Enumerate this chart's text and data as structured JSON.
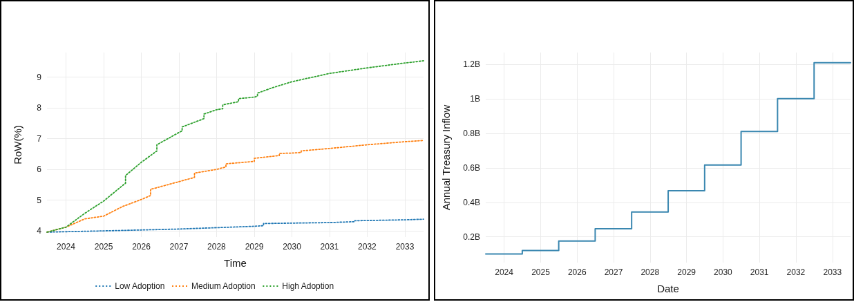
{
  "chart_data": [
    {
      "type": "line",
      "xlabel": "Time",
      "ylabel": "RoW(%)",
      "xlim": [
        "2023-07",
        "2033-07"
      ],
      "xticks": [
        "2024",
        "2025",
        "2026",
        "2027",
        "2028",
        "2029",
        "2030",
        "2031",
        "2032",
        "2033"
      ],
      "ylim": [
        3.8,
        9.8
      ],
      "yticks": [
        4,
        5,
        6,
        7,
        8,
        9
      ],
      "grid": true,
      "legend": "bottom",
      "marker": "none",
      "line_style": "dotted",
      "series": [
        {
          "name": "Low Adoption",
          "color": "#1f77b4",
          "x": [
            "2023-07",
            "2025-01",
            "2027-01",
            "2029-01",
            "2029-04",
            "2029-04",
            "2031-01",
            "2031-09",
            "2031-09",
            "2033-01",
            "2033-07"
          ],
          "values": [
            3.96,
            4.0,
            4.06,
            4.15,
            4.17,
            4.24,
            4.27,
            4.3,
            4.33,
            4.36,
            4.38
          ]
        },
        {
          "name": "Medium Adoption",
          "color": "#ff7f0e",
          "x": [
            "2023-07",
            "2024-01",
            "2024-07",
            "2025-01",
            "2025-07",
            "2026-01",
            "2026-04",
            "2026-04",
            "2027-01",
            "2027-06",
            "2027-06",
            "2028-01",
            "2028-04",
            "2028-04",
            "2029-01",
            "2029-01",
            "2029-09",
            "2029-09",
            "2030-01",
            "2030-04",
            "2030-04",
            "2031-01",
            "2032-01",
            "2033-01",
            "2033-07"
          ],
          "values": [
            3.96,
            4.12,
            4.39,
            4.48,
            4.79,
            5.02,
            5.15,
            5.35,
            5.6,
            5.74,
            5.88,
            6.0,
            6.08,
            6.18,
            6.26,
            6.36,
            6.45,
            6.52,
            6.53,
            6.55,
            6.6,
            6.68,
            6.8,
            6.9,
            6.94
          ]
        },
        {
          "name": "High Adoption",
          "color": "#2ca02c",
          "x": [
            "2023-07",
            "2024-01",
            "2024-07",
            "2025-01",
            "2025-07",
            "2025-08",
            "2025-08",
            "2026-01",
            "2026-06",
            "2026-06",
            "2027-01",
            "2027-02",
            "2027-02",
            "2027-09",
            "2027-09",
            "2028-01",
            "2028-03",
            "2028-03",
            "2028-08",
            "2028-08",
            "2029-01",
            "2029-02",
            "2029-02",
            "2029-07",
            "2030-01",
            "2031-01",
            "2032-01",
            "2033-01",
            "2033-07"
          ],
          "values": [
            3.96,
            4.12,
            4.57,
            4.97,
            5.47,
            5.55,
            5.8,
            6.23,
            6.6,
            6.8,
            7.2,
            7.25,
            7.38,
            7.65,
            7.8,
            7.94,
            7.97,
            8.1,
            8.2,
            8.3,
            8.35,
            8.38,
            8.48,
            8.66,
            8.85,
            9.12,
            9.3,
            9.46,
            9.53
          ]
        }
      ]
    },
    {
      "type": "step",
      "xlabel": "Date",
      "ylabel": "Annual Treasury Inflow",
      "xlim": [
        "2023-07",
        "2033-07"
      ],
      "xticks": [
        "2024",
        "2025",
        "2026",
        "2027",
        "2028",
        "2029",
        "2030",
        "2031",
        "2032",
        "2033"
      ],
      "ylim": [
        0.05,
        1.27
      ],
      "yticks": [
        {
          "value": 0.2,
          "label": "0.2B"
        },
        {
          "value": 0.4,
          "label": "0.4B"
        },
        {
          "value": 0.6,
          "label": "0.6B"
        },
        {
          "value": 0.8,
          "label": "0.8B"
        },
        {
          "value": 1,
          "label": "1B"
        },
        {
          "value": 1.2,
          "label": "1.2B"
        }
      ],
      "grid": true,
      "marker": "none",
      "line_style": "solid",
      "series": [
        {
          "color": "#3a87b0",
          "x": [
            "2023-07",
            "2024-07",
            "2025-07",
            "2026-07",
            "2027-07",
            "2028-07",
            "2029-07",
            "2030-07",
            "2031-07",
            "2032-07",
            "2033-07"
          ],
          "values": [
            0.1,
            0.12,
            0.175,
            0.247,
            0.344,
            0.467,
            0.617,
            0.811,
            1.002,
            1.211,
            1.211
          ]
        }
      ]
    }
  ]
}
